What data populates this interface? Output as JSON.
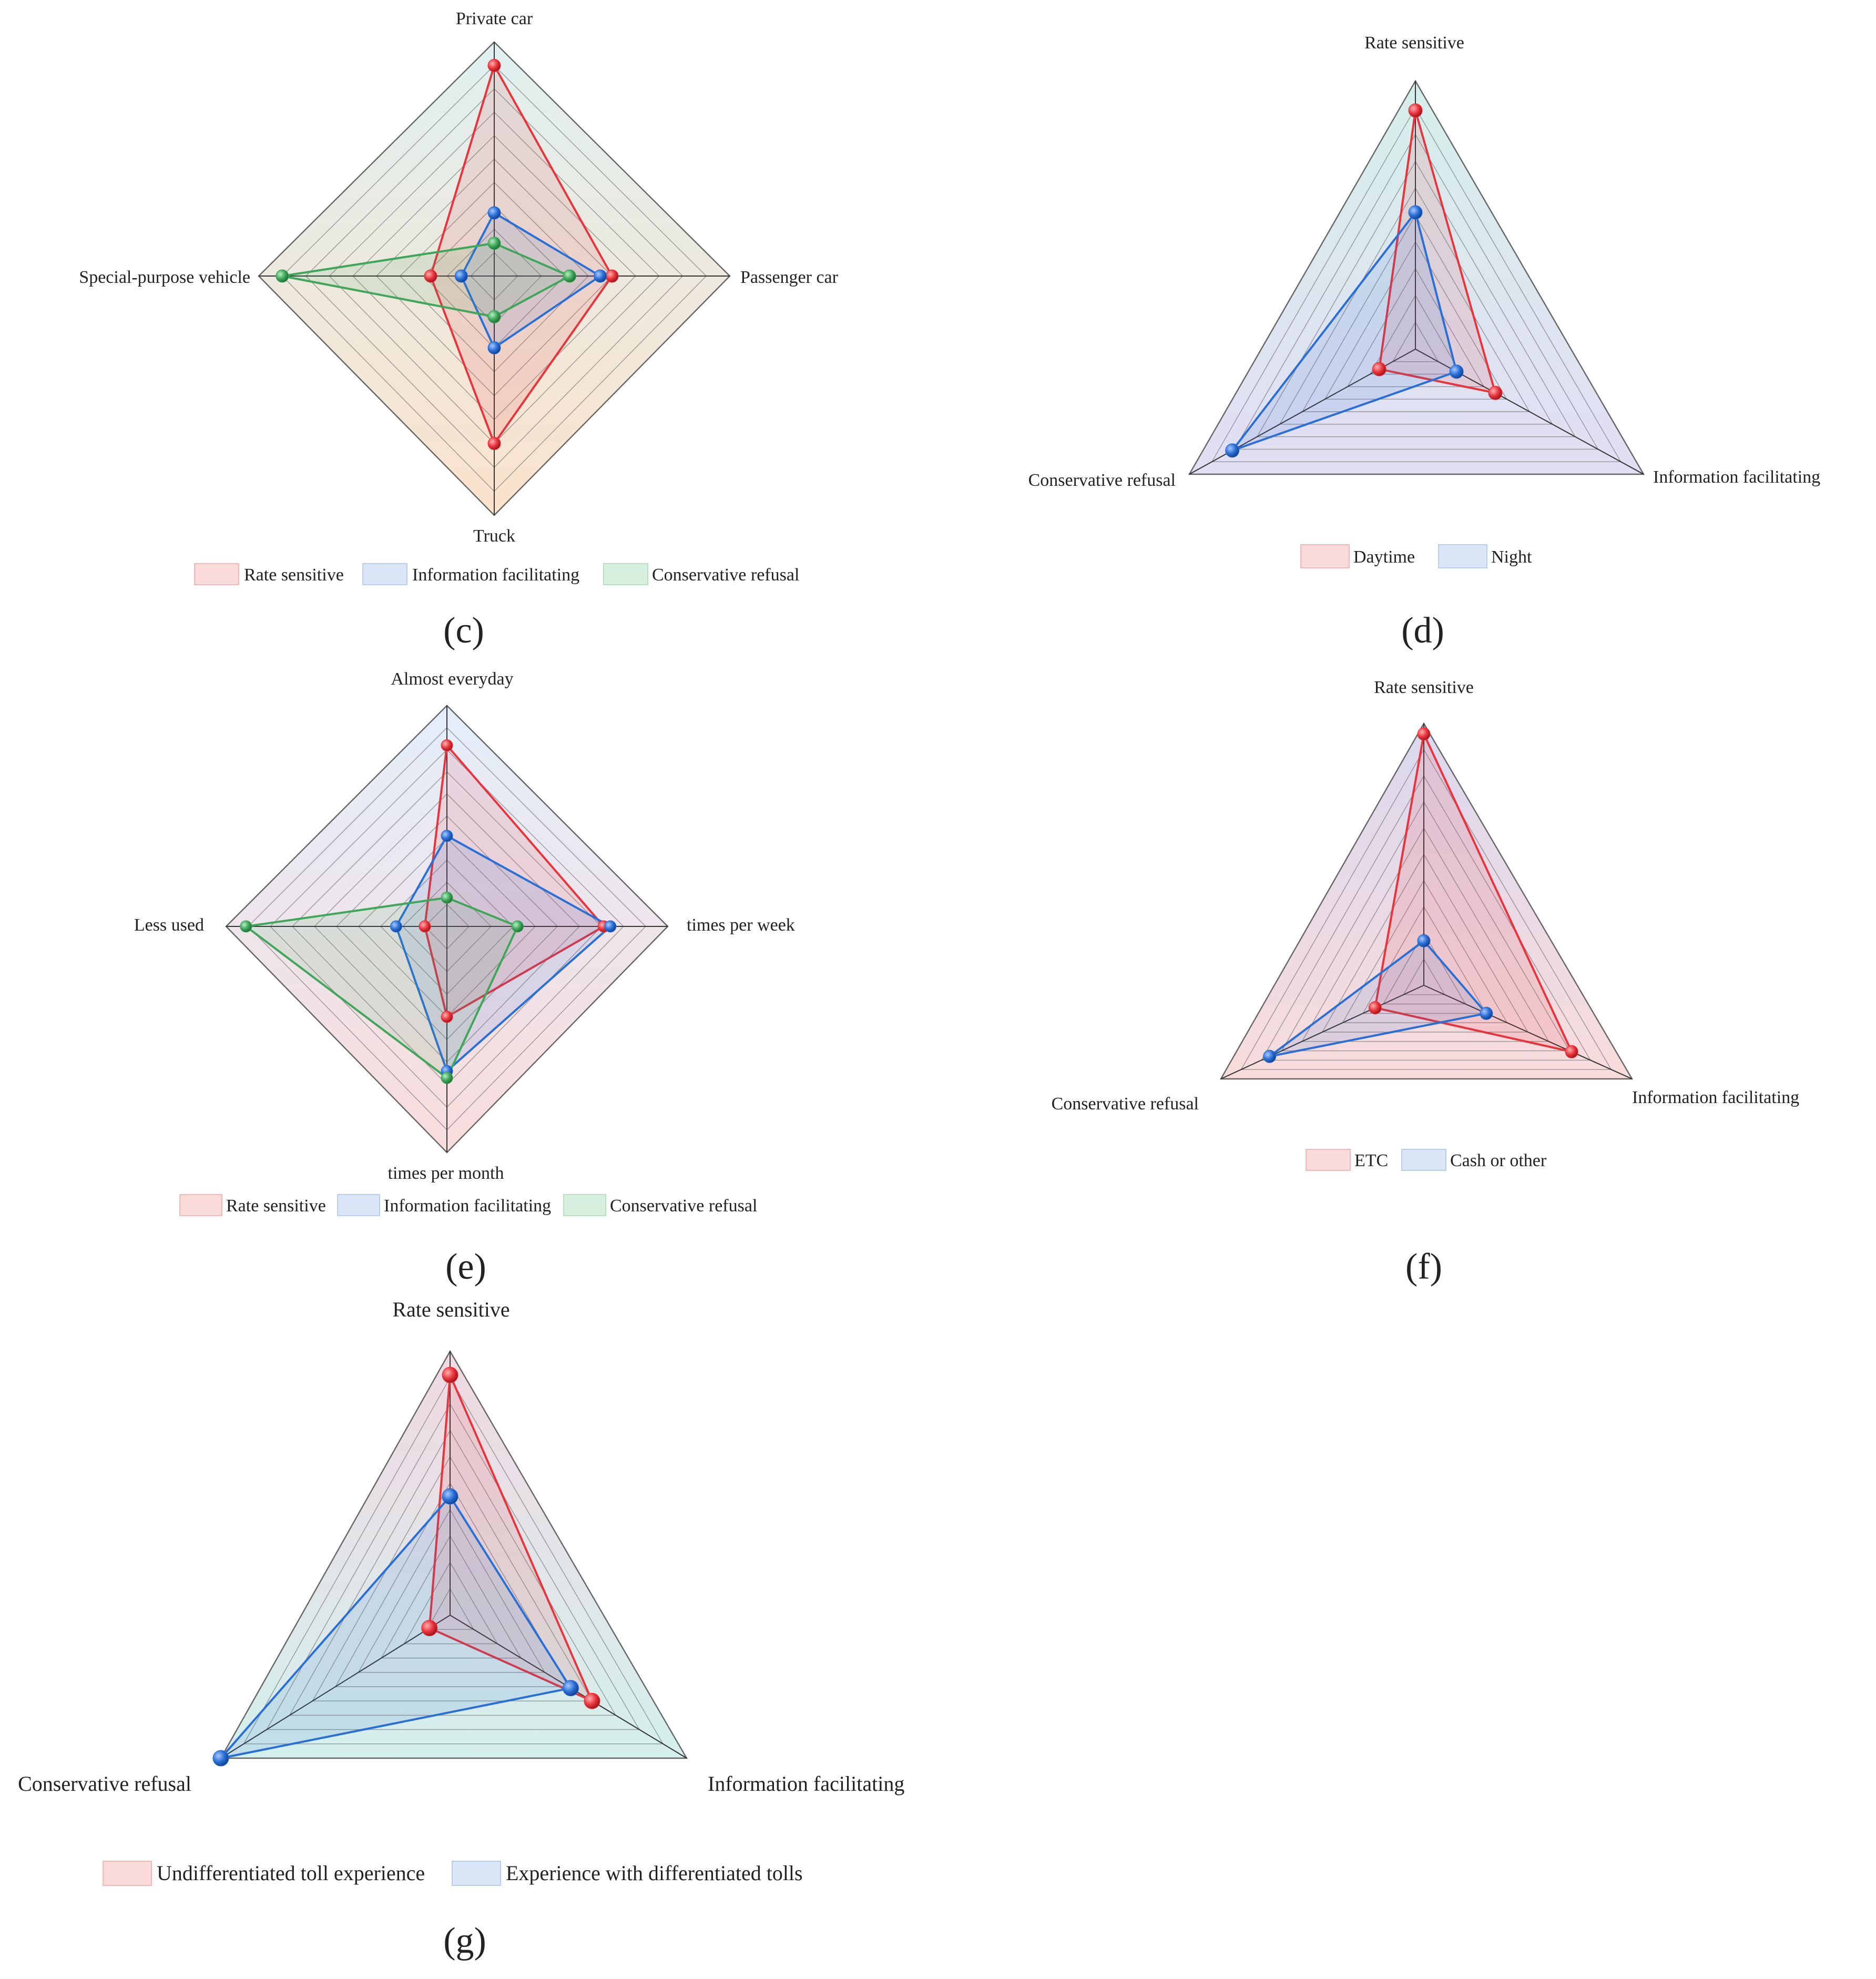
{
  "colors": {
    "rate_sensitive": "#e8343c",
    "information_facilitating": "#2a6fd6",
    "conservative_refusal": "#3fa65a",
    "grid": "#555555"
  },
  "chart_data": [
    {
      "id": "c",
      "type": "radar",
      "caption": "(c)",
      "axes": [
        "Private car",
        "Passenger car",
        "Truck",
        "Special-purpose vehicle"
      ],
      "scale_max": 10,
      "rings": 10,
      "series": [
        {
          "name": "Rate sensitive",
          "color": "rate_sensitive",
          "values": [
            9.0,
            5.0,
            7.0,
            2.7
          ]
        },
        {
          "name": "Information facilitating",
          "color": "information_facilitating",
          "values": [
            2.7,
            4.5,
            3.0,
            1.4
          ]
        },
        {
          "name": "Conservative refusal",
          "color": "conservative_refusal",
          "values": [
            1.4,
            3.2,
            1.7,
            9.0
          ]
        }
      ],
      "legend": [
        "Rate sensitive",
        "Information facilitating",
        "Conservative refusal"
      ]
    },
    {
      "id": "d",
      "type": "radar",
      "caption": "(d)",
      "axes": [
        "Rate sensitive",
        "Information facilitating",
        "Conservative refusal"
      ],
      "scale_max": 10,
      "rings": 10,
      "series": [
        {
          "name": "Daytime",
          "color": "rate_sensitive",
          "values": [
            8.9,
            3.5,
            1.6
          ]
        },
        {
          "name": "Night",
          "color": "information_facilitating",
          "values": [
            5.1,
            1.8,
            8.1
          ]
        }
      ],
      "legend": [
        "Daytime",
        "Night"
      ]
    },
    {
      "id": "e",
      "type": "radar",
      "caption": "(e)",
      "axes": [
        "Almost everyday",
        "times per week",
        "times per month",
        "Less used"
      ],
      "scale_max": 10,
      "rings": 10,
      "series": [
        {
          "name": "Rate sensitive",
          "color": "rate_sensitive",
          "values": [
            8.2,
            7.1,
            4.0,
            1.0
          ]
        },
        {
          "name": "Information facilitating",
          "color": "information_facilitating",
          "values": [
            4.1,
            7.4,
            6.4,
            2.3
          ]
        },
        {
          "name": "Conservative refusal",
          "color": "conservative_refusal",
          "values": [
            1.3,
            3.2,
            6.7,
            9.1
          ]
        }
      ],
      "legend": [
        "Rate sensitive",
        "Information facilitating",
        "Conservative refusal"
      ]
    },
    {
      "id": "f",
      "type": "radar",
      "caption": "(f)",
      "axes": [
        "Rate sensitive",
        "Information facilitating",
        "Conservative refusal"
      ],
      "scale_max": 10,
      "rings": 10,
      "series": [
        {
          "name": "ETC",
          "color": "rate_sensitive",
          "values": [
            9.6,
            7.1,
            2.4
          ]
        },
        {
          "name": "Cash or other",
          "color": "information_facilitating",
          "values": [
            1.7,
            3.0,
            7.6
          ]
        }
      ],
      "legend": [
        "ETC",
        "Cash or other"
      ]
    },
    {
      "id": "g",
      "type": "radar",
      "caption": "(g)",
      "axes": [
        "Rate sensitive",
        "Information facilitating",
        "Conservative refusal"
      ],
      "scale_max": 10,
      "rings": 10,
      "series": [
        {
          "name": "Undifferentiated toll experience",
          "color": "rate_sensitive",
          "values": [
            9.1,
            6.0,
            0.9
          ]
        },
        {
          "name": "Experience with differentiated tolls",
          "color": "information_facilitating",
          "values": [
            4.5,
            5.1,
            10.0
          ]
        }
      ],
      "legend": [
        "Undifferentiated toll experience",
        "Experience with differentiated tolls"
      ]
    }
  ]
}
